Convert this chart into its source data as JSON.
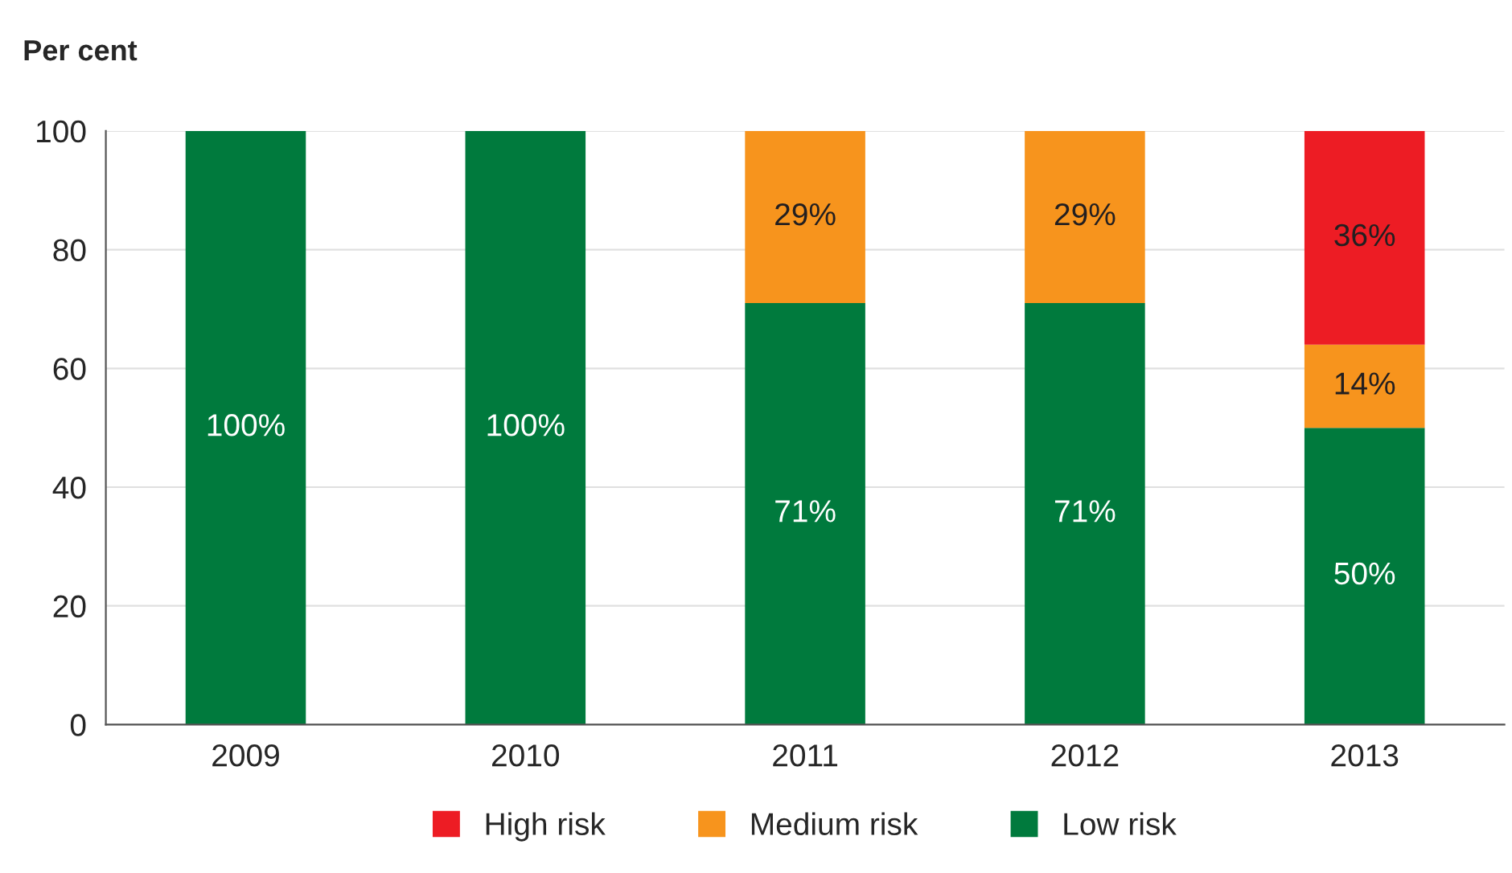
{
  "chart_data": {
    "type": "bar",
    "ylabel": "Per cent",
    "stacked": true,
    "categories": [
      "2009",
      "2010",
      "2011",
      "2012",
      "2013"
    ],
    "series": [
      {
        "name": "Low risk",
        "color": "#007a3d",
        "values": [
          100,
          100,
          71,
          71,
          50
        ],
        "value_labels": [
          "100%",
          "100%",
          "71%",
          "71%",
          "50%"
        ]
      },
      {
        "name": "Medium risk",
        "color": "#f7941d",
        "values": [
          null,
          null,
          29,
          29,
          14
        ],
        "value_labels": [
          null,
          null,
          "29%",
          "29%",
          "14%"
        ]
      },
      {
        "name": "High risk",
        "color": "#ed1c24",
        "values": [
          null,
          null,
          null,
          null,
          36
        ],
        "value_labels": [
          null,
          null,
          null,
          null,
          "36%"
        ]
      }
    ],
    "ylim": [
      0,
      100
    ],
    "yticks": [
      0,
      20,
      40,
      60,
      80,
      100
    ],
    "grid": "y",
    "legend": "bottom"
  }
}
